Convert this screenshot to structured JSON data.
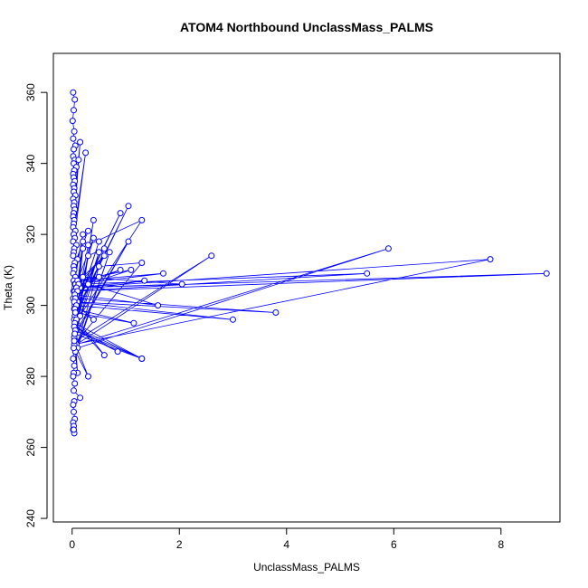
{
  "chart_data": {
    "type": "line",
    "title": "ATOM4 Northbound UnclassMass_PALMS",
    "xlabel": "UnclassMass_PALMS",
    "ylabel": "Theta (K)",
    "xlim": [
      -0.35,
      9.1
    ],
    "ylim": [
      239,
      371
    ],
    "xticks": [
      0,
      2,
      4,
      6,
      8
    ],
    "yticks": [
      240,
      260,
      280,
      300,
      320,
      340,
      360
    ],
    "series_color": "#0000ff",
    "grid": false,
    "legend": "none",
    "series": [
      {
        "x": [
          0.02,
          0.05,
          0.03,
          0.01,
          0.04,
          0.02,
          0.06,
          0.03,
          0.02,
          0.05,
          0.03,
          0.08,
          0.04,
          0.02,
          0.03,
          0.05,
          0.02,
          0.04,
          0.03,
          0.06,
          0.02,
          0.04,
          0.03,
          0.15,
          0.05,
          0.03,
          0.02,
          0.12,
          0.04,
          0.03,
          0.02,
          0.06,
          0.25,
          0.03,
          0.05,
          0.02,
          0.08,
          0.04,
          0.03,
          0.02,
          0.1,
          0.05,
          0.3,
          0.03,
          0.04,
          0.02,
          0.06,
          0.2,
          0.03,
          0.05,
          0.15,
          0.4,
          0.03,
          0.08,
          0.02,
          0.1,
          0.05,
          0.9,
          0.04,
          0.2,
          0.06,
          1.05,
          0.05,
          0.5,
          0.04,
          0.3,
          1.3,
          0.06,
          0.2,
          0.05,
          0.5,
          0.08,
          0.3,
          0.6,
          0.05,
          1.05,
          0.04,
          0.4,
          0.06,
          2.6,
          0.08,
          5.9,
          0.1,
          0.7,
          0.06,
          0.5,
          1.3,
          0.04,
          7.8,
          0.05,
          0.9,
          0.06,
          1.7,
          0.1,
          1.1,
          0.08,
          8.85,
          0.05,
          5.5,
          0.12,
          0.6,
          0.2,
          2.05,
          0.08,
          1.35,
          0.1,
          0.5,
          0.05,
          1.6,
          0.3,
          0.06,
          3.8,
          0.04,
          3.0,
          0.08,
          0.4,
          0.05,
          1.15,
          0.06,
          0.15,
          0.08,
          0.6,
          0.05,
          1.3,
          0.04,
          0.85,
          0.06,
          1.3,
          0.05,
          0.1,
          0.04,
          0.3,
          0.03,
          0.02,
          0.04,
          0.03,
          0.02,
          0.05,
          0.03,
          0.15,
          0.04,
          0.02,
          0.03,
          0.05,
          0.02,
          0.03,
          0.02,
          0.04,
          0.03
        ],
        "y": [
          360,
          358,
          355,
          352,
          349,
          347,
          345,
          344,
          342,
          341,
          340,
          339,
          338,
          337,
          336,
          335,
          334,
          333,
          332,
          331,
          330,
          329,
          328,
          346,
          327,
          326,
          325,
          341,
          324,
          323,
          322,
          321,
          343,
          320,
          319,
          318,
          317,
          316,
          315,
          314,
          313,
          312,
          321,
          311,
          310,
          309,
          308,
          320,
          307,
          306,
          305,
          319,
          304,
          303,
          302,
          301,
          300,
          326,
          299,
          318,
          298,
          328,
          297,
          318,
          296,
          317,
          324,
          295,
          316,
          294,
          315,
          293,
          314,
          316,
          292,
          318,
          291,
          324,
          290,
          314,
          289,
          316,
          288,
          315,
          287,
          311,
          312,
          289,
          313,
          305,
          310,
          306,
          309,
          307,
          310,
          305,
          309,
          304,
          309,
          306,
          314,
          308,
          306,
          305,
          307,
          304,
          308,
          303,
          300,
          306,
          302,
          298,
          301,
          296,
          300,
          296,
          299,
          295,
          298,
          297,
          296,
          286,
          295,
          285,
          294,
          287,
          293,
          285,
          292,
          281,
          290,
          280,
          288,
          285,
          283,
          281,
          280,
          278,
          276,
          274,
          273,
          272,
          270,
          268,
          267,
          266,
          265,
          264,
          265
        ],
        "markers": "open-circle"
      }
    ]
  }
}
